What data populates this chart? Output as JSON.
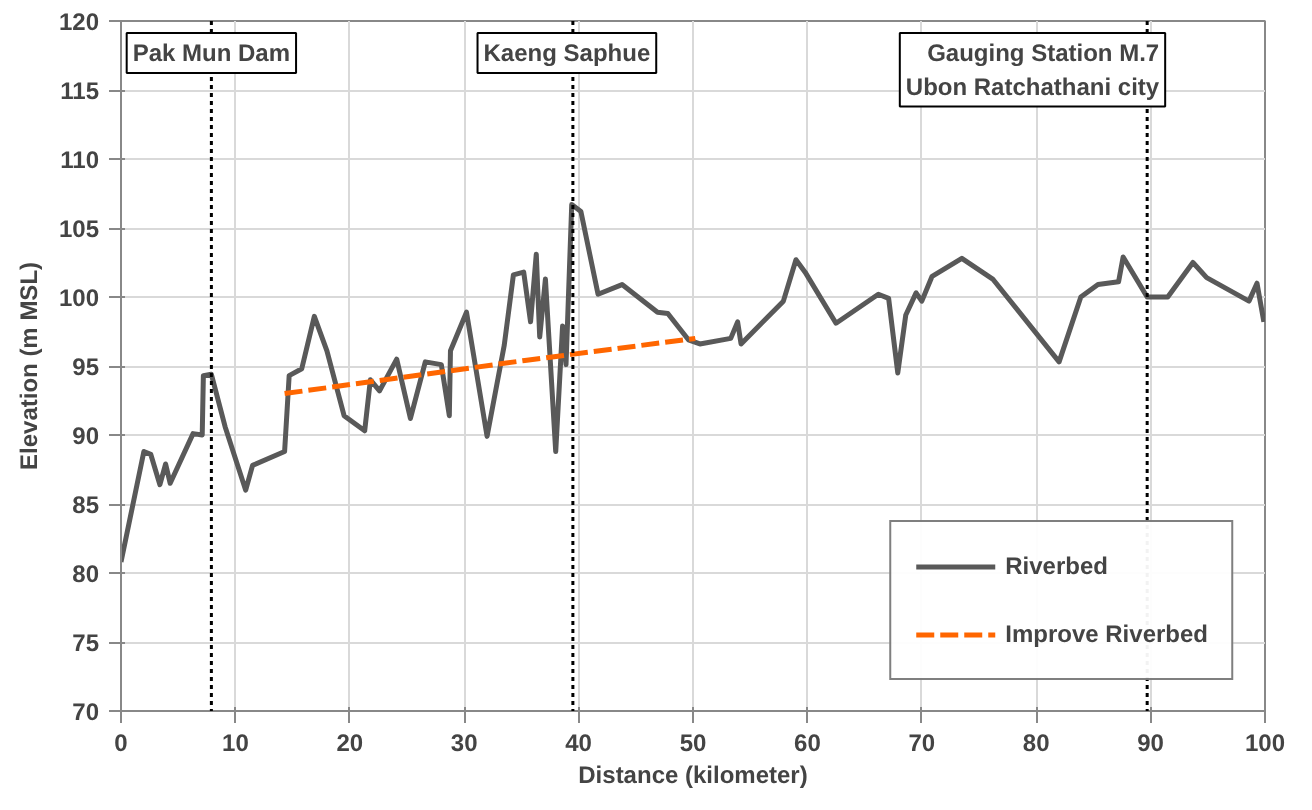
{
  "chart_data": {
    "type": "line",
    "xlabel": "Distance (kilometer)",
    "ylabel": "Elevation (m MSL)",
    "xlim": [
      0,
      100
    ],
    "xticks": [
      0,
      10,
      20,
      30,
      40,
      50,
      60,
      70,
      80,
      90,
      100
    ],
    "ylim": [
      70,
      120
    ],
    "yticks": [
      70,
      75,
      80,
      85,
      90,
      95,
      100,
      105,
      110,
      115,
      120
    ],
    "grid": true,
    "legend": "bottom right",
    "line_style": "solid",
    "marker": "none",
    "series": [
      {
        "name": "Riverbed",
        "color": "#595959",
        "x": [
          0,
          2.0,
          2.6,
          3.4,
          3.9,
          4.3,
          6.3,
          7.1,
          7.2,
          7.9,
          9.1,
          10.9,
          11.5,
          14.3,
          14.7,
          15.8,
          16.9,
          18.0,
          19.5,
          21.3,
          21.8,
          22.6,
          24.1,
          25.3,
          26.6,
          28.0,
          28.7,
          28.8,
          30.2,
          32.0,
          33.5,
          34.3,
          35.2,
          35.8,
          36.3,
          36.6,
          37.1,
          37.4,
          38.0,
          38.6,
          38.9,
          39.4,
          40.2,
          41.7,
          43.8,
          46.9,
          47.8,
          49.6,
          50.6,
          53.3,
          53.9,
          54.2,
          57.9,
          59.0,
          59.8,
          62.5,
          66.2,
          67.1,
          67.9,
          68.6,
          69.5,
          70.0,
          70.9,
          73.5,
          76.2,
          82.0,
          83.9,
          85.4,
          87.2,
          87.6,
          89.7,
          91.5,
          93.7,
          94.9,
          98.6,
          99.3,
          99.9
        ],
        "values": [
          80.8,
          88.8,
          88.6,
          86.4,
          87.9,
          86.5,
          90.1,
          90.0,
          94.3,
          94.4,
          90.6,
          86.0,
          87.8,
          88.8,
          94.3,
          94.8,
          98.6,
          96.1,
          91.4,
          90.3,
          94.0,
          93.2,
          95.5,
          91.2,
          95.3,
          95.1,
          91.4,
          96.1,
          98.9,
          89.9,
          96.5,
          101.6,
          101.8,
          98.2,
          103.1,
          97.1,
          101.3,
          97.1,
          88.8,
          97.9,
          95.1,
          106.7,
          106.2,
          100.2,
          100.9,
          98.9,
          98.8,
          96.9,
          96.6,
          97.0,
          98.2,
          96.6,
          99.7,
          102.7,
          101.8,
          98.1,
          100.2,
          99.9,
          94.5,
          98.7,
          100.3,
          99.7,
          101.5,
          102.8,
          101.3,
          95.3,
          100.0,
          100.9,
          101.1,
          102.9,
          100.0,
          100.0,
          102.5,
          101.4,
          99.7,
          101.0,
          98.2
        ]
      },
      {
        "name": "Improve Riverbed",
        "color": "#ff6600",
        "line_style": "dashed",
        "x": [
          14.3,
          35.3,
          50.2
        ],
        "values": [
          93.0,
          95.4,
          97.0
        ]
      }
    ],
    "ref_lines": [
      {
        "axis": "x",
        "value": 7.9,
        "label": "Pak Mun Dam",
        "line_style": "dotted",
        "color": "#000000"
      },
      {
        "axis": "x",
        "value": 39.5,
        "label": "Kaeng Saphue",
        "line_style": "dotted",
        "color": "#000000"
      },
      {
        "axis": "x",
        "value": 89.7,
        "label": "Gauging Station M.7\nUbon Ratchathani city",
        "line_style": "dotted",
        "color": "#000000"
      }
    ]
  }
}
